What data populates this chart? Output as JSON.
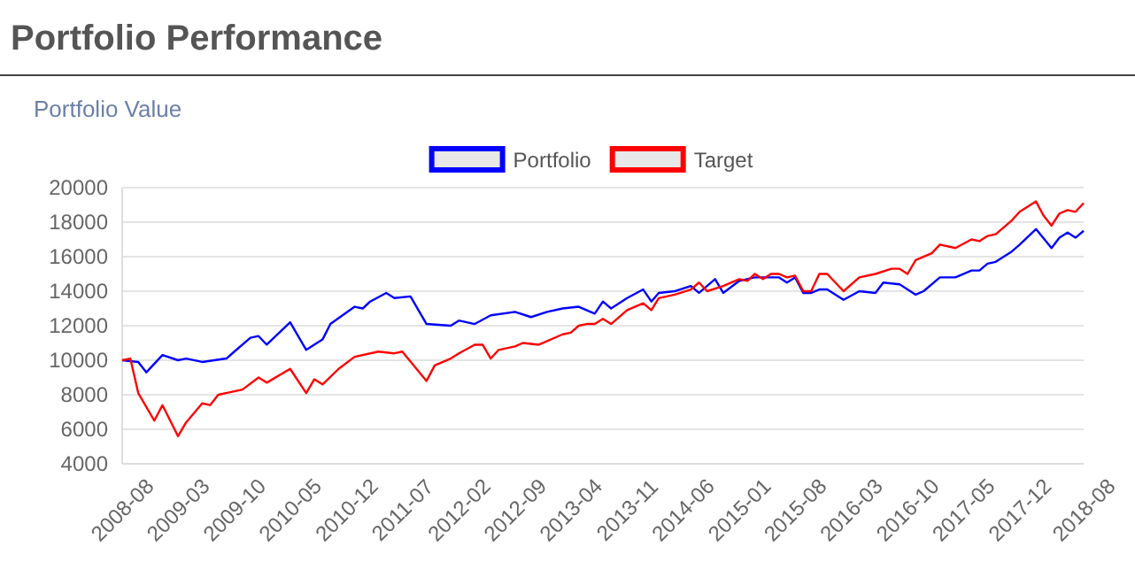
{
  "chart_data": {
    "type": "line",
    "title": "Portfolio Performance",
    "subtitle": "Portfolio Value",
    "xlim": [
      "2008-08",
      "2018-08"
    ],
    "xticks": [
      "2008-08",
      "2009-03",
      "2009-10",
      "2010-05",
      "2010-12",
      "2011-07",
      "2012-02",
      "2012-09",
      "2013-04",
      "2013-11",
      "2014-06",
      "2015-01",
      "2015-08",
      "2016-03",
      "2016-10",
      "2017-05",
      "2017-12",
      "2018-08"
    ],
    "ylim": [
      4000,
      20000
    ],
    "yticks": [
      4000,
      6000,
      8000,
      10000,
      12000,
      14000,
      16000,
      18000,
      20000
    ],
    "grid": "y",
    "legend": "top",
    "marker": "none",
    "line_style": "solid",
    "series": [
      {
        "name": "Portfolio",
        "color": "#0000ff",
        "x": [
          "2008-08",
          "2008-10",
          "2008-11",
          "2009-01",
          "2009-03",
          "2009-04",
          "2009-06",
          "2009-09",
          "2009-10",
          "2009-12",
          "2010-01",
          "2010-02",
          "2010-05",
          "2010-07",
          "2010-09",
          "2010-10",
          "2011-01",
          "2011-02",
          "2011-03",
          "2011-05",
          "2011-06",
          "2011-08",
          "2011-10",
          "2012-01",
          "2012-02",
          "2012-04",
          "2012-06",
          "2012-09",
          "2012-11",
          "2013-01",
          "2013-03",
          "2013-05",
          "2013-07",
          "2013-08",
          "2013-09",
          "2013-11",
          "2014-01",
          "2014-02",
          "2014-03",
          "2014-05",
          "2014-07",
          "2014-08",
          "2014-10",
          "2014-11",
          "2015-01",
          "2015-03",
          "2015-06",
          "2015-07",
          "2015-08",
          "2015-09",
          "2015-10",
          "2015-11",
          "2015-12",
          "2016-02",
          "2016-04",
          "2016-06",
          "2016-07",
          "2016-09",
          "2016-11",
          "2016-12",
          "2017-02",
          "2017-04",
          "2017-06",
          "2017-07",
          "2017-08",
          "2017-09",
          "2017-11",
          "2017-12",
          "2018-02",
          "2018-04",
          "2018-05",
          "2018-06",
          "2018-07",
          "2018-08"
        ],
        "values": [
          10000,
          9900,
          9300,
          10300,
          10000,
          10100,
          9900,
          10100,
          10500,
          11300,
          11400,
          10900,
          12200,
          10600,
          11200,
          12100,
          13100,
          13000,
          13400,
          13900,
          13600,
          13700,
          12100,
          12000,
          12300,
          12100,
          12600,
          12800,
          12500,
          12800,
          13000,
          13100,
          12700,
          13400,
          13000,
          13600,
          14100,
          13400,
          13900,
          14000,
          14300,
          13900,
          14700,
          13900,
          14600,
          14800,
          14800,
          14500,
          14800,
          13900,
          13900,
          14100,
          14100,
          13500,
          14000,
          13900,
          14500,
          14400,
          13800,
          14000,
          14800,
          14800,
          15200,
          15200,
          15600,
          15700,
          16300,
          16700,
          17600,
          16500,
          17100,
          17400,
          17100,
          17500
        ]
      },
      {
        "name": "Target",
        "color": "#ff0000",
        "x": [
          "2008-08",
          "2008-09",
          "2008-10",
          "2008-12",
          "2009-01",
          "2009-03",
          "2009-04",
          "2009-06",
          "2009-07",
          "2009-08",
          "2009-10",
          "2009-11",
          "2010-01",
          "2010-02",
          "2010-05",
          "2010-07",
          "2010-08",
          "2010-09",
          "2010-11",
          "2011-01",
          "2011-04",
          "2011-06",
          "2011-07",
          "2011-10",
          "2011-11",
          "2012-01",
          "2012-02",
          "2012-04",
          "2012-05",
          "2012-06",
          "2012-07",
          "2012-09",
          "2012-10",
          "2012-12",
          "2013-03",
          "2013-04",
          "2013-05",
          "2013-06",
          "2013-07",
          "2013-08",
          "2013-09",
          "2013-11",
          "2014-01",
          "2014-02",
          "2014-03",
          "2014-05",
          "2014-07",
          "2014-08",
          "2014-09",
          "2014-11",
          "2015-01",
          "2015-02",
          "2015-03",
          "2015-04",
          "2015-05",
          "2015-06",
          "2015-07",
          "2015-08",
          "2015-09",
          "2015-10",
          "2015-11",
          "2015-12",
          "2016-02",
          "2016-04",
          "2016-06",
          "2016-08",
          "2016-09",
          "2016-10",
          "2016-11",
          "2017-01",
          "2017-02",
          "2017-04",
          "2017-06",
          "2017-07",
          "2017-08",
          "2017-09",
          "2017-11",
          "2017-12",
          "2018-02",
          "2018-03",
          "2018-04",
          "2018-05",
          "2018-06",
          "2018-07",
          "2018-08"
        ],
        "values": [
          10000,
          10100,
          8100,
          6500,
          7400,
          5600,
          6400,
          7500,
          7400,
          8000,
          8200,
          8300,
          9000,
          8700,
          9500,
          8100,
          8900,
          8600,
          9500,
          10200,
          10500,
          10400,
          10500,
          8800,
          9700,
          10100,
          10400,
          10900,
          10900,
          10100,
          10600,
          10800,
          11000,
          10900,
          11500,
          11600,
          12000,
          12100,
          12100,
          12400,
          12100,
          12900,
          13300,
          12900,
          13600,
          13800,
          14100,
          14500,
          14000,
          14300,
          14700,
          14600,
          15000,
          14700,
          15000,
          15000,
          14800,
          14900,
          14000,
          14000,
          15000,
          15000,
          14000,
          14800,
          15000,
          15300,
          15300,
          15000,
          15800,
          16200,
          16700,
          16500,
          17000,
          16900,
          17200,
          17300,
          18100,
          18600,
          19200,
          18400,
          17800,
          18500,
          18700,
          18600,
          19100
        ]
      }
    ]
  }
}
